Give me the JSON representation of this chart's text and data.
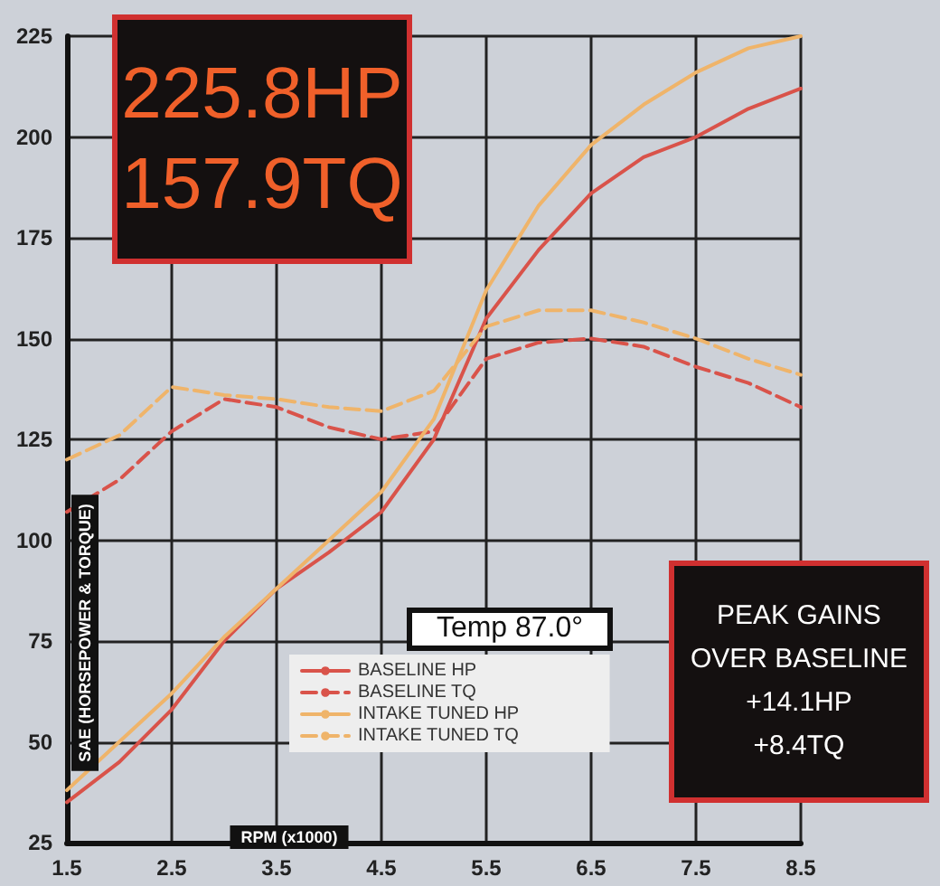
{
  "chart_data": {
    "type": "line",
    "xlabel": "RPM (x1000)",
    "ylabel": "SAE (HORSEPOWER & TORQUE)",
    "x": [
      1.5,
      2.0,
      2.5,
      3.0,
      3.5,
      4.0,
      4.5,
      5.0,
      5.5,
      6.0,
      6.5,
      7.0,
      7.5,
      8.0,
      8.5
    ],
    "xlim": [
      1.5,
      8.5
    ],
    "xticks": [
      1.5,
      2.5,
      3.5,
      4.5,
      5.5,
      6.5,
      7.5,
      8.5
    ],
    "ylim": [
      25,
      225
    ],
    "yticks": [
      25,
      50,
      75,
      100,
      125,
      150,
      175,
      200,
      225
    ],
    "grid": true,
    "legend": "bottom",
    "marker": "none",
    "series": [
      {
        "name": "BASELINE HP",
        "color": "#d9534a",
        "line_style": "solid",
        "values": [
          35,
          45,
          58,
          75,
          88,
          97,
          107,
          125,
          155,
          172,
          186,
          195,
          200,
          207,
          212
        ]
      },
      {
        "name": "BASELINE TQ",
        "color": "#d9534a",
        "line_style": "dashed",
        "values": [
          107,
          115,
          127,
          135,
          133,
          128,
          125,
          127,
          145,
          149,
          150,
          148,
          143,
          139,
          133
        ]
      },
      {
        "name": "INTAKE TUNED HP",
        "color": "#efb46a",
        "line_style": "solid",
        "values": [
          38,
          50,
          62,
          76,
          88,
          100,
          112,
          130,
          162,
          183,
          198,
          208,
          216,
          222,
          225
        ]
      },
      {
        "name": "INTAKE TUNED TQ",
        "color": "#efb46a",
        "line_style": "dashed",
        "values": [
          120,
          126,
          138,
          136,
          135,
          133,
          132,
          137,
          153,
          157,
          157,
          154,
          150,
          145,
          141
        ]
      }
    ],
    "annotations": [
      "225.8HP\n157.9TQ",
      "Temp 87.0°",
      "PEAK GAINS\nOVER BASELINE\n+14.1HP\n+8.4TQ"
    ]
  }
}
